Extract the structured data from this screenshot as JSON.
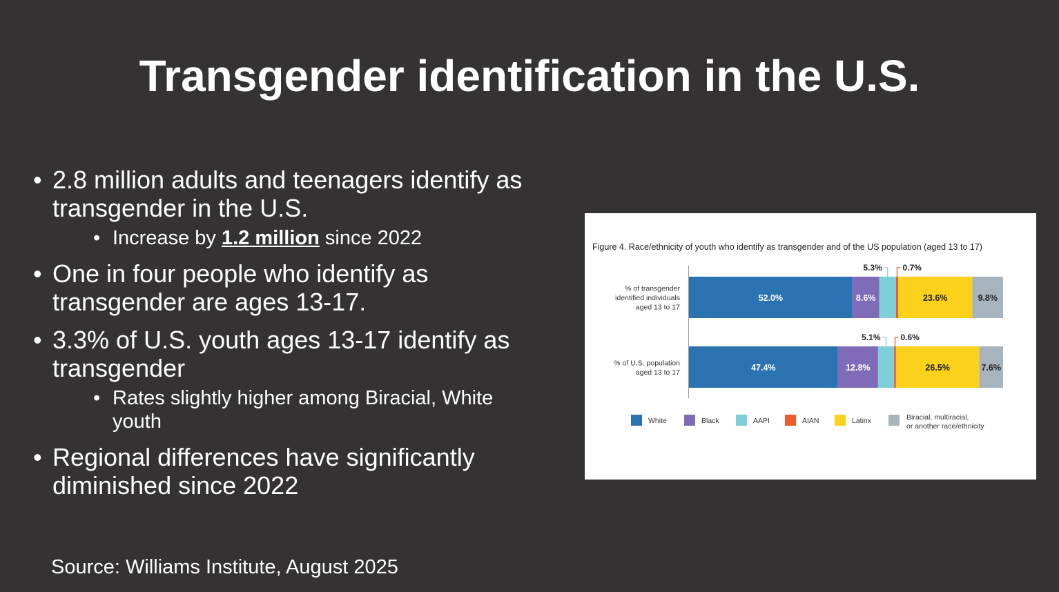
{
  "slide": {
    "title": "Transgender identification in the U.S.",
    "bullets": [
      {
        "text": "2.8 million adults and teenagers identify as transgender in the U.S."
      },
      {
        "pre": "Increase by ",
        "bold": "1.2 million",
        "post": " since 2022"
      },
      {
        "text": "One in four people who identify as transgender are ages 13-17."
      },
      {
        "text": "3.3% of U.S. youth ages 13-17 identify as transgender"
      },
      {
        "text": "Rates slightly higher among Biracial, White youth"
      },
      {
        "text": "Regional differences have significantly diminished since 2022"
      }
    ],
    "source": "Source: Williams Institute, August 2025",
    "bullet_glyph": "•"
  },
  "chart_data": {
    "type": "bar",
    "orientation": "horizontal",
    "stacked": true,
    "title": "Figure 4. Race/ethnicity of youth who identify as transgender and of the US population (aged 13 to 17)",
    "categories": [
      [
        "% of transgender",
        "identified individuals",
        "aged 13 to 17"
      ],
      [
        "% of U.S. population",
        "aged 13 to 17"
      ]
    ],
    "series": [
      {
        "name": "White",
        "color": "#2b72b0",
        "values": [
          52.0,
          47.4
        ],
        "labels": [
          "52.0%",
          "47.4%"
        ]
      },
      {
        "name": "Black",
        "color": "#7f6bb8",
        "values": [
          8.6,
          12.8
        ],
        "labels": [
          "8.6%",
          "12.8%"
        ]
      },
      {
        "name": "AAPI",
        "color": "#7ecfd9",
        "values": [
          5.3,
          5.1
        ],
        "labels": [
          "5.3%",
          "5.1%"
        ]
      },
      {
        "name": "AIAN",
        "color": "#ee5a2a",
        "values": [
          0.7,
          0.6
        ],
        "labels": [
          "0.7%",
          "0.6%"
        ]
      },
      {
        "name": "Latinx",
        "color": "#fbd11b",
        "values": [
          23.6,
          26.5
        ],
        "labels": [
          "23.6%",
          "26.5%"
        ]
      },
      {
        "name": "Biracial, multiracial, or another race/ethnicity",
        "legend_lines": [
          "Biracial, multiracial,",
          "or another race/ethnicity"
        ],
        "color": "#a8b4bd",
        "values": [
          9.8,
          7.6
        ],
        "labels": [
          "9.8%",
          "7.6%"
        ]
      }
    ],
    "callout_series": [
      "AAPI",
      "AIAN"
    ],
    "xlim": [
      0,
      100
    ],
    "legend_position": "bottom",
    "grid": false
  }
}
